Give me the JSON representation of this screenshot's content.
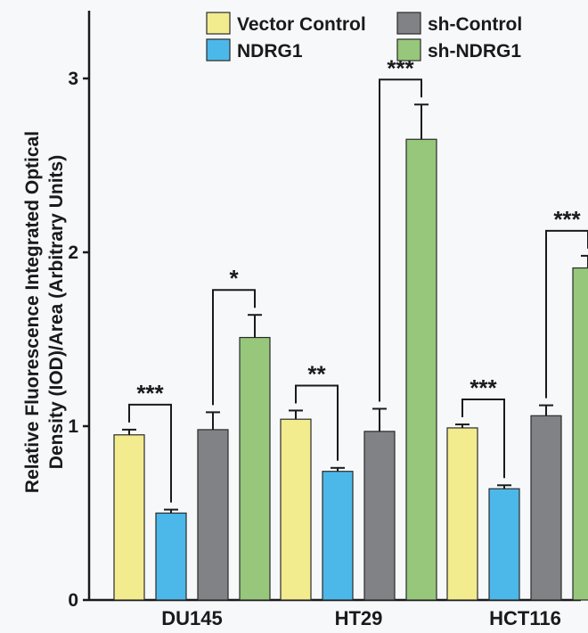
{
  "chart_data": {
    "type": "bar",
    "ylabel_line1": "Relative Fluorescence Integrated Optical",
    "ylabel_line2": "Density (IOD)/Area (Arbitrary Units)",
    "xlabel": "",
    "ylim": [
      0,
      3.3
    ],
    "yticks": [
      "0",
      "1",
      "2",
      "3"
    ],
    "categories": [
      "DU145",
      "HT29",
      "HCT116"
    ],
    "legend_position": "top-right",
    "series": [
      {
        "name": "Vector Control",
        "color": "#f3ec8e",
        "values": [
          0.95,
          1.04,
          0.99
        ],
        "errors": [
          0.03,
          0.05,
          0.02
        ]
      },
      {
        "name": "NDRG1",
        "color": "#4cb8e9",
        "values": [
          0.5,
          0.74,
          0.64
        ],
        "errors": [
          0.02,
          0.02,
          0.02
        ]
      },
      {
        "name": "sh-Control",
        "color": "#818285",
        "values": [
          0.98,
          0.97,
          1.06
        ],
        "errors": [
          0.1,
          0.13,
          0.06
        ]
      },
      {
        "name": "sh-NDRG1",
        "color": "#97c77b",
        "values": [
          1.51,
          2.65,
          1.91
        ],
        "errors": [
          0.13,
          0.2,
          0.07
        ]
      }
    ],
    "significance": [
      {
        "category": 0,
        "from": 0,
        "to": 1,
        "label": "***"
      },
      {
        "category": 0,
        "from": 2,
        "to": 3,
        "label": "*"
      },
      {
        "category": 1,
        "from": 0,
        "to": 1,
        "label": "**"
      },
      {
        "category": 1,
        "from": 2,
        "to": 3,
        "label": "***"
      },
      {
        "category": 2,
        "from": 0,
        "to": 1,
        "label": "***"
      },
      {
        "category": 2,
        "from": 2,
        "to": 3,
        "label": "***"
      }
    ]
  }
}
